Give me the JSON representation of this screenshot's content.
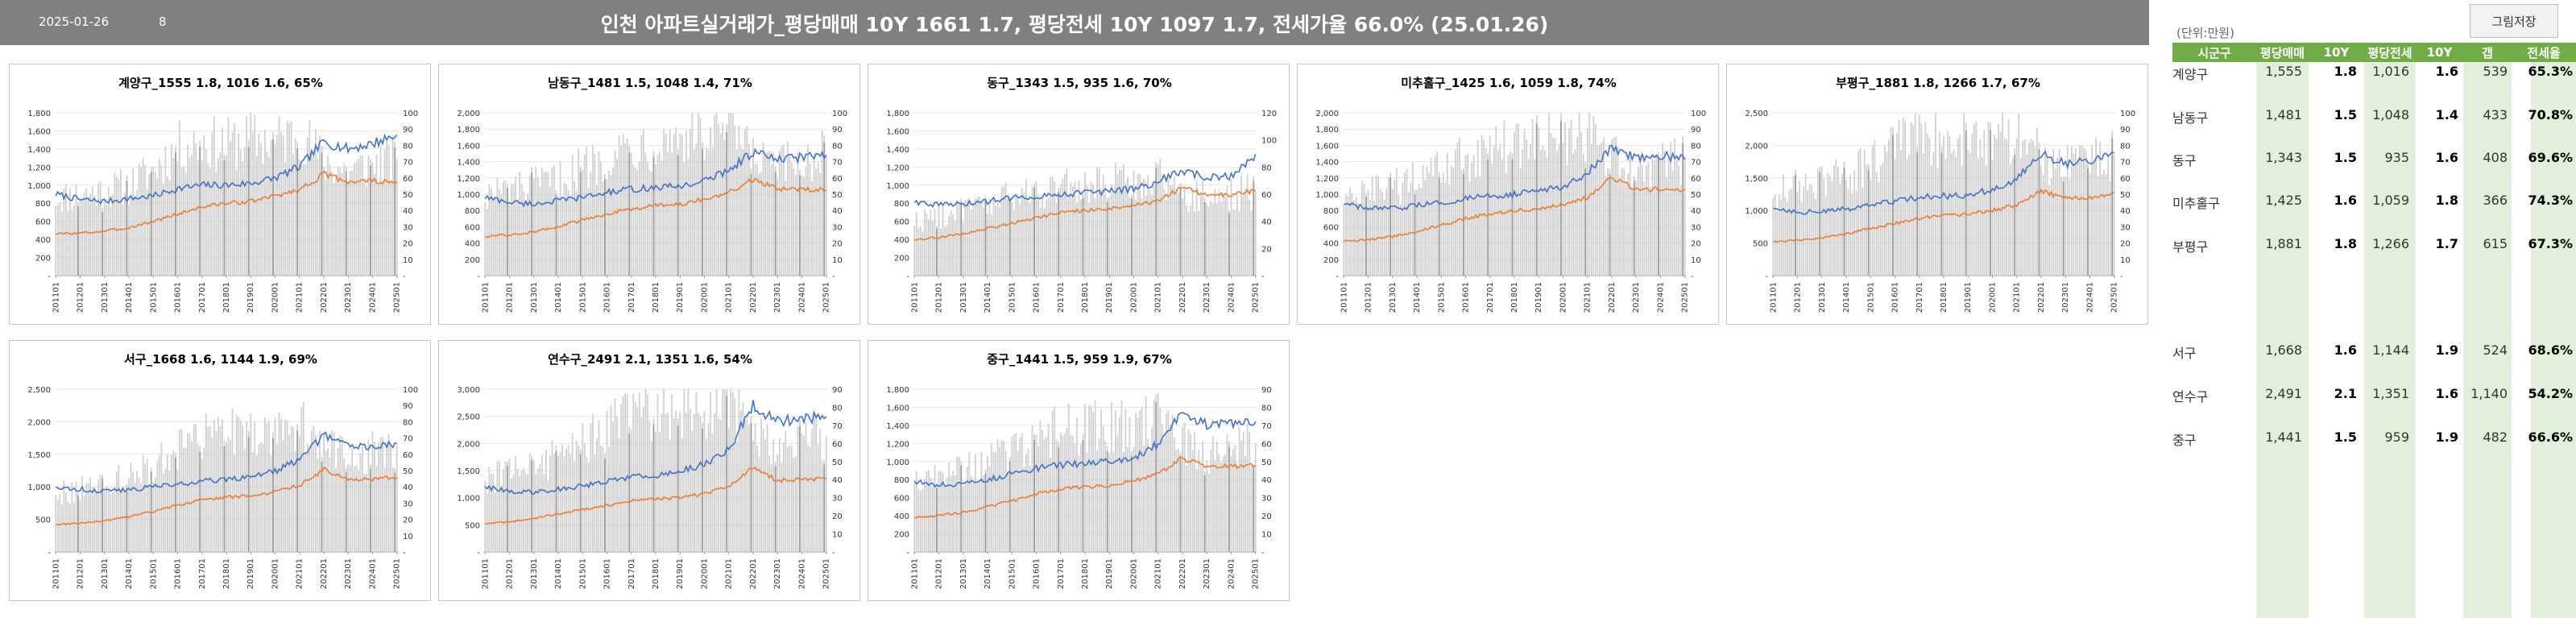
{
  "header": {
    "date": "2025-01-26",
    "count": "8",
    "title": "인천 아파트실거래가_평당매매 10Y 1661 1.7, 평당전세 10Y 1097 1.7, 전세가율 66.0% (25.01.26)",
    "save_button": "그림저장"
  },
  "colors": {
    "sale": "#4472c4",
    "jeonse": "#ed7d31",
    "bars": "#d0d0d0",
    "header_bg": "#808080",
    "table_header": "#70ad47",
    "table_green": "#e2efda"
  },
  "table": {
    "unit": "(단위:만원)",
    "headers": [
      "시군구",
      "평당매매",
      "10Y",
      "평당전세",
      "10Y",
      "갭",
      "전세율"
    ],
    "rows": [
      {
        "name": "계양구",
        "sale": "1,555",
        "sale10y": "1.8",
        "jeonse": "1,016",
        "jeonse10y": "1.6",
        "gap": "539",
        "ratio": "65.3%"
      },
      {
        "name": "남동구",
        "sale": "1,481",
        "sale10y": "1.5",
        "jeonse": "1,048",
        "jeonse10y": "1.4",
        "gap": "433",
        "ratio": "70.8%"
      },
      {
        "name": "동구",
        "sale": "1,343",
        "sale10y": "1.5",
        "jeonse": "935",
        "jeonse10y": "1.6",
        "gap": "408",
        "ratio": "69.6%"
      },
      {
        "name": "미추홀구",
        "sale": "1,425",
        "sale10y": "1.6",
        "jeonse": "1,059",
        "jeonse10y": "1.8",
        "gap": "366",
        "ratio": "74.3%"
      },
      {
        "name": "부평구",
        "sale": "1,881",
        "sale10y": "1.8",
        "jeonse": "1,266",
        "jeonse10y": "1.7",
        "gap": "615",
        "ratio": "67.3%"
      },
      {
        "name": "서구",
        "sale": "1,668",
        "sale10y": "1.6",
        "jeonse": "1,144",
        "jeonse10y": "1.9",
        "gap": "524",
        "ratio": "68.6%"
      },
      {
        "name": "연수구",
        "sale": "2,491",
        "sale10y": "2.1",
        "jeonse": "1,351",
        "jeonse10y": "1.6",
        "gap": "1,140",
        "ratio": "54.2%"
      },
      {
        "name": "중구",
        "sale": "1,441",
        "sale10y": "1.5",
        "jeonse": "959",
        "jeonse10y": "1.9",
        "gap": "482",
        "ratio": "66.6%"
      }
    ]
  },
  "chart_data": [
    {
      "type": "bar+line",
      "title": "계양구_1555 1.8, 1016 1.6, 65%",
      "x_labels": [
        "201101",
        "201201",
        "201301",
        "201401",
        "201501",
        "201601",
        "201701",
        "201801",
        "201901",
        "202001",
        "202101",
        "202201",
        "202301",
        "202401",
        "202501"
      ],
      "ylim": [
        0,
        1800
      ],
      "yticks": [
        "-",
        "200",
        "400",
        "600",
        "800",
        "1,000",
        "1,200",
        "1,400",
        "1,600",
        "1,800"
      ],
      "y2lim": [
        0,
        100
      ],
      "y2ticks": [
        "-",
        "10",
        "20",
        "30",
        "40",
        "50",
        "60",
        "70",
        "80",
        "90",
        "100"
      ],
      "series": [
        {
          "axis": "right",
          "values": [
            48,
            50,
            52,
            55,
            65,
            78,
            82,
            80,
            84,
            82,
            88,
            70,
            64,
            68,
            72
          ]
        },
        {
          "axis": "left",
          "values": [
            900,
            840,
            820,
            850,
            880,
            960,
            1000,
            1000,
            1020,
            1080,
            1200,
            1480,
            1400,
            1460,
            1555
          ]
        },
        {
          "axis": "left",
          "values": [
            460,
            470,
            490,
            530,
            600,
            680,
            760,
            800,
            820,
            880,
            950,
            1120,
            1040,
            1050,
            1016
          ]
        }
      ]
    },
    {
      "type": "bar+line",
      "title": "남동구_1481 1.5, 1048 1.4, 71%",
      "x_labels": [
        "201101",
        "201201",
        "201301",
        "201401",
        "201501",
        "201601",
        "201701",
        "201801",
        "201901",
        "202001",
        "202101",
        "202201",
        "202301",
        "202401",
        "202501"
      ],
      "ylim": [
        0,
        2000
      ],
      "yticks": [
        "-",
        "200",
        "400",
        "600",
        "800",
        "1,000",
        "1,200",
        "1,400",
        "1,600",
        "1,800",
        "2,000"
      ],
      "y2lim": [
        0,
        100
      ],
      "y2ticks": [
        "-",
        "10",
        "20",
        "30",
        "40",
        "50",
        "60",
        "70",
        "80",
        "90",
        "100"
      ],
      "series": [
        {
          "axis": "right",
          "values": [
            50,
            52,
            55,
            58,
            66,
            74,
            80,
            82,
            86,
            84,
            90,
            72,
            66,
            70,
            74
          ]
        },
        {
          "axis": "left",
          "values": [
            960,
            900,
            880,
            920,
            960,
            1020,
            1060,
            1080,
            1100,
            1160,
            1300,
            1520,
            1420,
            1460,
            1481
          ]
        },
        {
          "axis": "left",
          "values": [
            480,
            500,
            540,
            600,
            680,
            760,
            820,
            860,
            880,
            940,
            1020,
            1180,
            1060,
            1060,
            1048
          ]
        }
      ]
    },
    {
      "type": "bar+line",
      "title": "동구_1343 1.5, 935 1.6, 70%",
      "x_labels": [
        "201101",
        "201201",
        "201301",
        "201401",
        "201501",
        "201601",
        "201701",
        "201801",
        "201901",
        "202001",
        "202101",
        "202201",
        "202301",
        "202401",
        "202501"
      ],
      "ylim": [
        0,
        1800
      ],
      "yticks": [
        "-",
        "200",
        "400",
        "600",
        "800",
        "1,000",
        "1,200",
        "1,400",
        "1,600",
        "1,800"
      ],
      "y2lim": [
        0,
        120
      ],
      "y2ticks": [
        "-",
        "20",
        "40",
        "60",
        "80",
        "100",
        "120"
      ],
      "series": [
        {
          "axis": "right",
          "values": [
            40,
            44,
            48,
            52,
            58,
            62,
            66,
            64,
            70,
            68,
            74,
            60,
            58,
            60,
            62
          ]
        },
        {
          "axis": "left",
          "values": [
            820,
            780,
            790,
            820,
            860,
            880,
            900,
            920,
            930,
            960,
            1040,
            1160,
            1080,
            1100,
            1343
          ]
        },
        {
          "axis": "left",
          "values": [
            400,
            420,
            460,
            520,
            580,
            640,
            700,
            720,
            740,
            780,
            820,
            980,
            880,
            900,
            935
          ]
        }
      ]
    },
    {
      "type": "bar+line",
      "title": "미추홀구_1425 1.6, 1059 1.8, 74%",
      "x_labels": [
        "201101",
        "201201",
        "201301",
        "201401",
        "201501",
        "201601",
        "201701",
        "201801",
        "201901",
        "202001",
        "202101",
        "202201",
        "202301",
        "202401",
        "202501"
      ],
      "ylim": [
        0,
        2000
      ],
      "yticks": [
        "-",
        "200",
        "400",
        "600",
        "800",
        "1,000",
        "1,200",
        "1,400",
        "1,600",
        "1,800",
        "2,000"
      ],
      "y2lim": [
        0,
        100
      ],
      "y2ticks": [
        "-",
        "10",
        "20",
        "30",
        "40",
        "50",
        "60",
        "70",
        "80",
        "90",
        "100"
      ],
      "series": [
        {
          "axis": "right",
          "values": [
            46,
            50,
            54,
            58,
            64,
            72,
            78,
            80,
            84,
            82,
            88,
            72,
            64,
            68,
            72
          ]
        },
        {
          "axis": "left",
          "values": [
            880,
            820,
            820,
            860,
            900,
            940,
            980,
            1000,
            1040,
            1100,
            1260,
            1560,
            1460,
            1480,
            1425
          ]
        },
        {
          "axis": "left",
          "values": [
            420,
            440,
            480,
            540,
            620,
            700,
            760,
            800,
            820,
            880,
            960,
            1200,
            1060,
            1060,
            1059
          ]
        }
      ]
    },
    {
      "type": "bar+line",
      "title": "부평구_1881 1.8, 1266 1.7, 67%",
      "x_labels": [
        "201101",
        "201201",
        "201301",
        "201401",
        "201501",
        "201601",
        "201701",
        "201801",
        "201901",
        "202001",
        "202101",
        "202201",
        "202301",
        "202401",
        "202501"
      ],
      "ylim": [
        0,
        2500
      ],
      "yticks": [
        "-",
        "500",
        "1,000",
        "1,500",
        "2,000",
        "2,500"
      ],
      "y2lim": [
        0,
        100
      ],
      "y2ticks": [
        "-",
        "10",
        "20",
        "30",
        "40",
        "50",
        "60",
        "70",
        "80",
        "90",
        "100"
      ],
      "series": [
        {
          "axis": "right",
          "values": [
            50,
            54,
            58,
            62,
            70,
            78,
            84,
            84,
            86,
            84,
            88,
            72,
            66,
            70,
            74
          ]
        },
        {
          "axis": "left",
          "values": [
            1040,
            980,
            980,
            1020,
            1080,
            1140,
            1200,
            1220,
            1240,
            1320,
            1480,
            1860,
            1720,
            1760,
            1881
          ]
        },
        {
          "axis": "left",
          "values": [
            520,
            540,
            580,
            640,
            720,
            800,
            880,
            920,
            940,
            1000,
            1080,
            1300,
            1180,
            1200,
            1266
          ]
        }
      ]
    },
    {
      "type": "bar+line",
      "title": "서구_1668 1.6, 1144 1.9, 69%",
      "x_labels": [
        "201101",
        "201201",
        "201301",
        "201401",
        "201501",
        "201601",
        "201701",
        "201801",
        "201901",
        "202001",
        "202101",
        "202201",
        "202301",
        "202401",
        "202501"
      ],
      "ylim": [
        0,
        2500
      ],
      "yticks": [
        "-",
        "500",
        "1,000",
        "1,500",
        "2,000",
        "2,500"
      ],
      "y2lim": [
        0,
        100
      ],
      "y2ticks": [
        "-",
        "10",
        "20",
        "30",
        "40",
        "50",
        "60",
        "70",
        "80",
        "90",
        "100"
      ],
      "series": [
        {
          "axis": "right",
          "values": [
            36,
            38,
            42,
            46,
            54,
            62,
            70,
            72,
            74,
            72,
            80,
            64,
            58,
            62,
            66
          ]
        },
        {
          "axis": "left",
          "values": [
            1000,
            960,
            940,
            960,
            1000,
            1040,
            1080,
            1120,
            1160,
            1240,
            1420,
            1800,
            1620,
            1640,
            1668
          ]
        },
        {
          "axis": "left",
          "values": [
            420,
            440,
            480,
            540,
            620,
            720,
            800,
            840,
            860,
            920,
            1020,
            1260,
            1120,
            1120,
            1144
          ]
        }
      ]
    },
    {
      "type": "bar+line",
      "title": "연수구_2491 2.1, 1351 1.6, 54%",
      "x_labels": [
        "201101",
        "201201",
        "201301",
        "201401",
        "201501",
        "201601",
        "201701",
        "201801",
        "201901",
        "202001",
        "202101",
        "202201",
        "202301",
        "202401",
        "202501"
      ],
      "ylim": [
        0,
        3000
      ],
      "yticks": [
        "-",
        "500",
        "1,000",
        "1,500",
        "2,000",
        "2,500",
        "3,000"
      ],
      "y2lim": [
        0,
        90
      ],
      "y2ticks": [
        "-",
        "10",
        "20",
        "30",
        "40",
        "50",
        "60",
        "70",
        "80",
        "90"
      ],
      "series": [
        {
          "axis": "right",
          "values": [
            40,
            44,
            48,
            52,
            60,
            68,
            76,
            78,
            80,
            78,
            84,
            66,
            58,
            62,
            64
          ]
        },
        {
          "axis": "left",
          "values": [
            1200,
            1120,
            1100,
            1160,
            1220,
            1300,
            1380,
            1420,
            1480,
            1620,
            1900,
            2700,
            2400,
            2460,
            2491
          ]
        },
        {
          "axis": "left",
          "values": [
            520,
            560,
            620,
            700,
            780,
            860,
            940,
            980,
            1000,
            1080,
            1200,
            1560,
            1320,
            1340,
            1351
          ]
        }
      ]
    },
    {
      "type": "bar+line",
      "title": "중구_1441 1.5, 959 1.9, 67%",
      "x_labels": [
        "201101",
        "201201",
        "201301",
        "201401",
        "201501",
        "201601",
        "201701",
        "201801",
        "201901",
        "202001",
        "202101",
        "202201",
        "202301",
        "202401",
        "202501"
      ],
      "ylim": [
        0,
        1800
      ],
      "yticks": [
        "-",
        "200",
        "400",
        "600",
        "800",
        "1,000",
        "1,200",
        "1,400",
        "1,600",
        "1,800"
      ],
      "y2lim": [
        0,
        90
      ],
      "y2ticks": [
        "-",
        "10",
        "20",
        "30",
        "40",
        "50",
        "60",
        "70",
        "80",
        "90"
      ],
      "series": [
        {
          "axis": "right",
          "values": [
            38,
            42,
            46,
            50,
            56,
            62,
            68,
            68,
            70,
            68,
            74,
            60,
            54,
            58,
            60
          ]
        },
        {
          "axis": "left",
          "values": [
            780,
            740,
            760,
            800,
            860,
            920,
            960,
            980,
            1000,
            1040,
            1200,
            1560,
            1400,
            1420,
            1441
          ]
        },
        {
          "axis": "left",
          "values": [
            380,
            400,
            440,
            500,
            560,
            640,
            700,
            720,
            740,
            780,
            860,
            1040,
            940,
            950,
            959
          ]
        }
      ]
    }
  ]
}
